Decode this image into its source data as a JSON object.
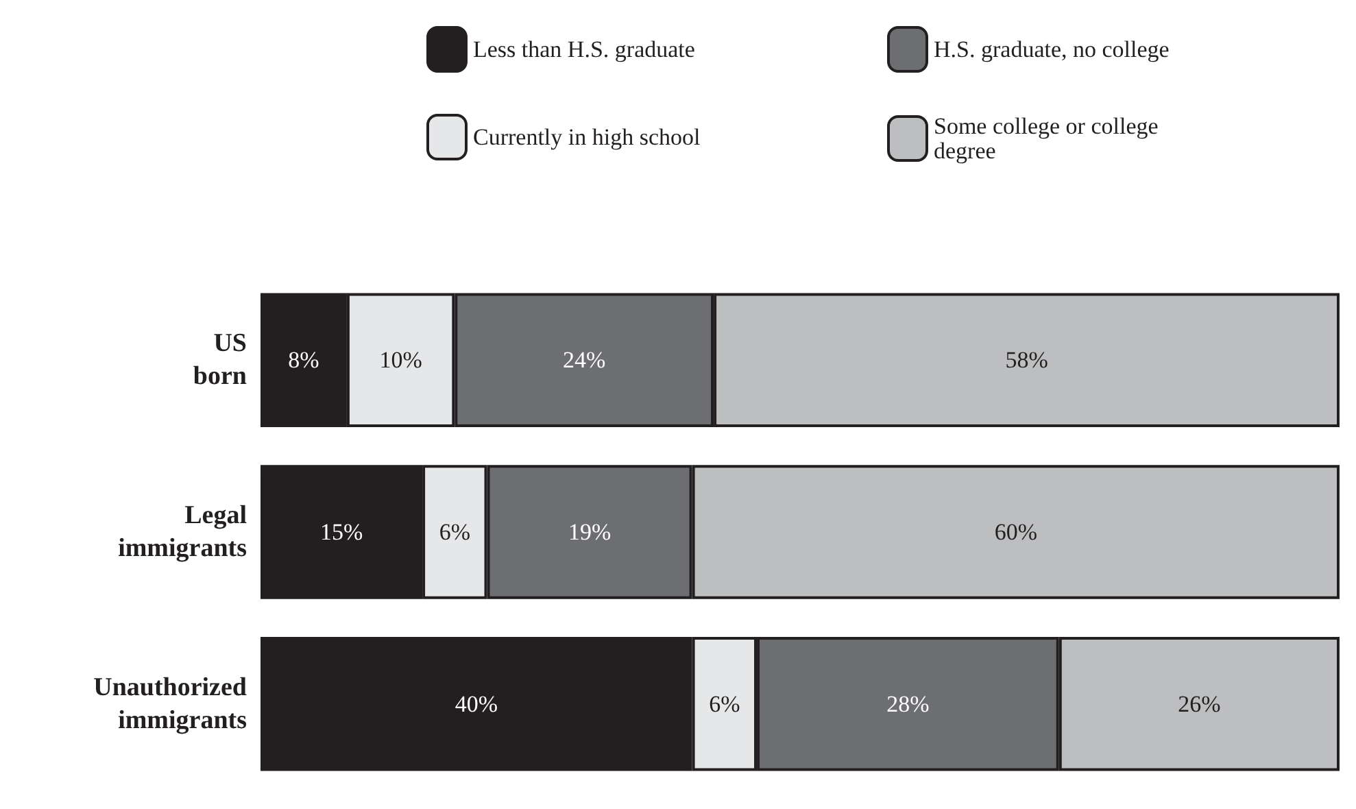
{
  "chart_data": {
    "type": "bar",
    "orientation": "horizontal",
    "stacked": true,
    "legend": "top right",
    "categories": [
      "US born",
      "Legal immigrants",
      "Unauthorized immigrants"
    ],
    "series": [
      {
        "name": "Less than H.S. graduate",
        "color": "#231f20",
        "values": [
          8,
          15,
          40
        ],
        "value_labels": [
          "8%",
          "15%",
          "40%"
        ]
      },
      {
        "name": "Currently in high school",
        "color": "#e6e7e8",
        "values": [
          10,
          6,
          6
        ],
        "value_labels": [
          "10%",
          "6%",
          "6%"
        ]
      },
      {
        "name": "H.S. graduate, no college",
        "color": "#6d6e71",
        "values": [
          24,
          19,
          28
        ],
        "value_labels": [
          "24%",
          "19%",
          "28%"
        ]
      },
      {
        "name": "Some college or college degree",
        "color": "#bcbec0",
        "values": [
          58,
          60,
          26
        ],
        "value_labels": [
          "58%",
          "60%",
          "26%"
        ]
      }
    ]
  }
}
